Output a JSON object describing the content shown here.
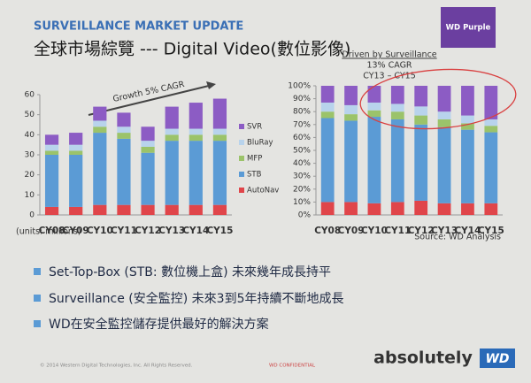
{
  "header": {
    "kicker": "SURVEILLANCE MARKET UPDATE",
    "title": "全球市場綜覽 --- Digital Video(數位影像)",
    "badge": "WD Purple"
  },
  "chart_data": [
    {
      "type": "stacked_bar",
      "categories": [
        "CY08",
        "CY09",
        "CY10",
        "CY11",
        "CY12",
        "CY13",
        "CY14",
        "CY15"
      ],
      "series": [
        {
          "name": "AutoNav",
          "color": "#e0454a",
          "values": [
            4,
            4,
            5,
            5,
            5,
            5,
            5,
            5
          ]
        },
        {
          "name": "STB",
          "color": "#5b9bd5",
          "values": [
            26,
            26,
            36,
            33,
            26,
            32,
            32,
            32
          ]
        },
        {
          "name": "MFP",
          "color": "#9bc36a",
          "values": [
            2,
            2,
            3,
            3,
            3,
            3,
            3,
            3
          ]
        },
        {
          "name": "BluRay",
          "color": "#b8d3ec",
          "values": [
            3,
            3,
            3,
            3,
            3,
            3,
            3,
            3
          ]
        },
        {
          "name": "SVR",
          "color": "#8c5cc4",
          "values": [
            5,
            6,
            7,
            7,
            7,
            11,
            13,
            15
          ]
        }
      ],
      "ylim": [
        0,
        60
      ],
      "yticks": [
        0,
        10,
        20,
        30,
        40,
        50,
        60
      ],
      "legend": "right",
      "annotations": [
        "Growth 5% CAGR",
        "(units: millions)"
      ]
    },
    {
      "type": "stacked_bar",
      "categories": [
        "CY08",
        "CY09",
        "CY10",
        "CY11",
        "CY12",
        "CY13",
        "CY14",
        "CY15"
      ],
      "series": [
        {
          "color": "#e0454a",
          "values": [
            10,
            10,
            9,
            10,
            11,
            9,
            9,
            9
          ]
        },
        {
          "color": "#5b9bd5",
          "values": [
            65,
            63,
            67,
            64,
            59,
            59,
            57,
            55
          ]
        },
        {
          "color": "#9bc36a",
          "values": [
            5,
            5,
            5,
            6,
            7,
            6,
            5,
            5
          ]
        },
        {
          "color": "#b8d3ec",
          "values": [
            7,
            7,
            6,
            6,
            7,
            6,
            6,
            5
          ]
        },
        {
          "color": "#8c5cc4",
          "values": [
            13,
            15,
            13,
            14,
            16,
            20,
            23,
            26
          ]
        }
      ],
      "ylim": [
        0,
        100
      ],
      "yticks": [
        {
          "value": 0,
          "label": "0%"
        },
        {
          "value": 10,
          "label": "10%"
        },
        {
          "value": 20,
          "label": "20%"
        },
        {
          "value": 30,
          "label": "30%"
        },
        {
          "value": 40,
          "label": "40%"
        },
        {
          "value": 50,
          "label": "50%"
        },
        {
          "value": 60,
          "label": "60%"
        },
        {
          "value": 70,
          "label": "70%"
        },
        {
          "value": 80,
          "label": "80%"
        },
        {
          "value": 90,
          "label": "90%"
        },
        {
          "value": 100,
          "label": "100%"
        }
      ],
      "annotations": [
        "Driven by Surveillance",
        "13% CAGR",
        "CY13 – CY15",
        "Source: WD Analysis"
      ]
    }
  ],
  "bullets": [
    "Set-Top-Box (STB: 數位機上盒) 未來幾年成長持平",
    "Surveillance (安全監控) 未來3到5年持續不斷地成長",
    "WD在安全監控儲存提供最好的解決方案"
  ],
  "footer": {
    "copyright": "© 2014 Western Digital Technologies, Inc. All Rights Reserved.",
    "confidential": "WD CONFIDENTIAL",
    "tagline": "absolutely",
    "logo": "WD"
  }
}
